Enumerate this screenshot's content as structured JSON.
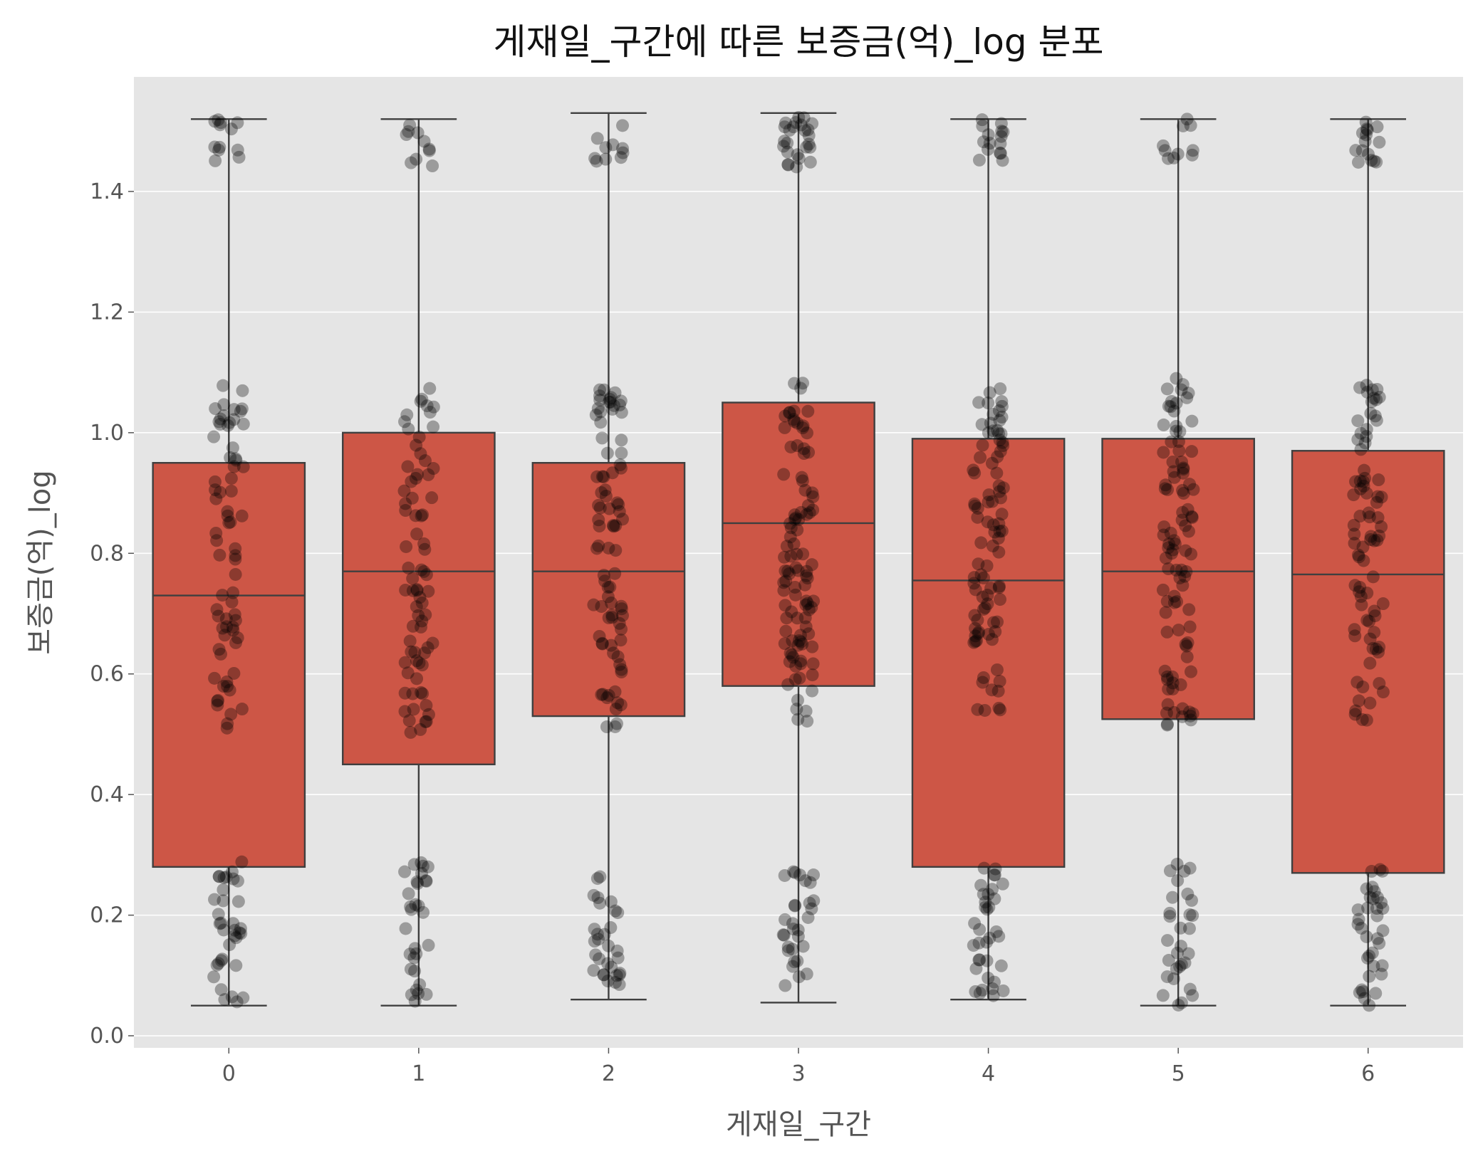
{
  "chart_data": {
    "type": "box",
    "title": "게재일_구간에 따른 보증금(억)_log 분포",
    "xlabel": "게재일_구간",
    "ylabel": "보증금(억)_log",
    "categories": [
      "0",
      "1",
      "2",
      "3",
      "4",
      "5",
      "6"
    ],
    "ylim": [
      -0.02,
      1.59
    ],
    "yticks": [
      0.0,
      0.2,
      0.4,
      0.6,
      0.8,
      1.0,
      1.2,
      1.4
    ],
    "ytick_labels": [
      "0.0",
      "0.2",
      "0.4",
      "0.6",
      "0.8",
      "1.0",
      "1.2",
      "1.4"
    ],
    "grid": true,
    "boxes": [
      {
        "category": "0",
        "whisker_low": 0.05,
        "q1": 0.28,
        "median": 0.73,
        "q3": 0.95,
        "whisker_high": 1.52
      },
      {
        "category": "1",
        "whisker_low": 0.05,
        "q1": 0.45,
        "median": 0.77,
        "q3": 1.0,
        "whisker_high": 1.52
      },
      {
        "category": "2",
        "whisker_low": 0.06,
        "q1": 0.53,
        "median": 0.77,
        "q3": 0.95,
        "whisker_high": 1.53
      },
      {
        "category": "3",
        "whisker_low": 0.055,
        "q1": 0.58,
        "median": 0.85,
        "q3": 1.05,
        "whisker_high": 1.53
      },
      {
        "category": "4",
        "whisker_low": 0.06,
        "q1": 0.28,
        "median": 0.755,
        "q3": 0.99,
        "whisker_high": 1.52
      },
      {
        "category": "5",
        "whisker_low": 0.05,
        "q1": 0.525,
        "median": 0.77,
        "q3": 0.99,
        "whisker_high": 1.52
      },
      {
        "category": "6",
        "whisker_low": 0.05,
        "q1": 0.27,
        "median": 0.765,
        "q3": 0.97,
        "whisker_high": 1.52
      }
    ],
    "strip_clusters": [
      {
        "category": "0",
        "ranges": [
          [
            1.45,
            1.52,
            12
          ],
          [
            0.5,
            1.08,
            70
          ],
          [
            0.05,
            0.29,
            35
          ]
        ]
      },
      {
        "category": "1",
        "ranges": [
          [
            1.44,
            1.52,
            10
          ],
          [
            0.5,
            1.08,
            75
          ],
          [
            0.05,
            0.29,
            30
          ]
        ]
      },
      {
        "category": "2",
        "ranges": [
          [
            1.45,
            1.52,
            10
          ],
          [
            0.51,
            1.08,
            85
          ],
          [
            0.06,
            0.27,
            30
          ]
        ]
      },
      {
        "category": "3",
        "ranges": [
          [
            1.44,
            1.53,
            25
          ],
          [
            0.52,
            1.09,
            100
          ],
          [
            0.055,
            0.28,
            30
          ]
        ]
      },
      {
        "category": "4",
        "ranges": [
          [
            1.45,
            1.52,
            15
          ],
          [
            0.53,
            1.08,
            90
          ],
          [
            0.06,
            0.29,
            35
          ]
        ]
      },
      {
        "category": "5",
        "ranges": [
          [
            1.45,
            1.52,
            10
          ],
          [
            0.51,
            1.09,
            95
          ],
          [
            0.05,
            0.29,
            30
          ]
        ]
      },
      {
        "category": "6",
        "ranges": [
          [
            1.44,
            1.52,
            15
          ],
          [
            0.52,
            1.09,
            80
          ],
          [
            0.05,
            0.28,
            35
          ]
        ]
      }
    ],
    "box_color": "#CD5646",
    "point_color": "#000000",
    "background": "#E5E5E5"
  }
}
